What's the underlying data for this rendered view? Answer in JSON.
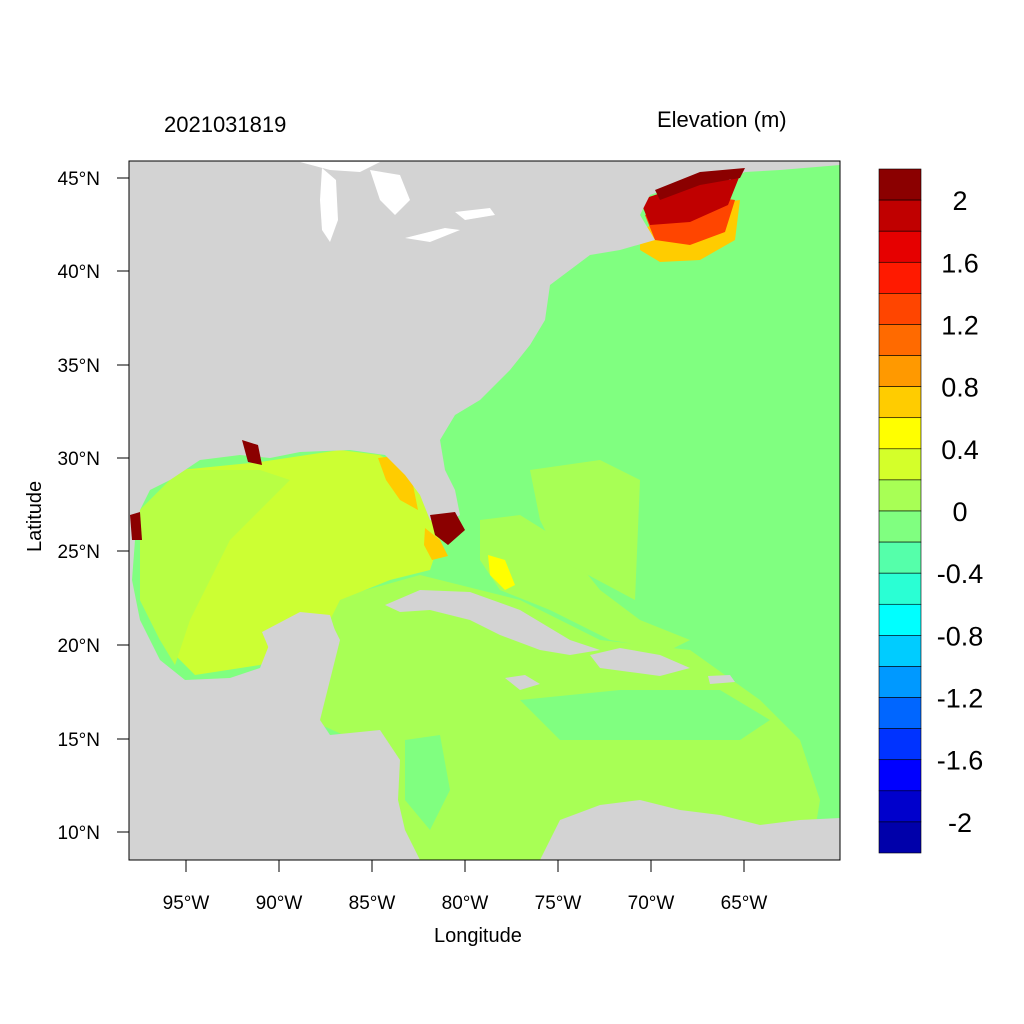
{
  "titles": {
    "left": "2021031819",
    "right": "Elevation (m)"
  },
  "axes": {
    "xlabel": "Longitude",
    "ylabel": "Latitude",
    "x_ticks": [
      "95°W",
      "90°W",
      "85°W",
      "80°W",
      "75°W",
      "70°W",
      "65°W"
    ],
    "y_ticks": [
      "45°N",
      "40°N",
      "35°N",
      "30°N",
      "25°N",
      "20°N",
      "15°N",
      "10°N"
    ]
  },
  "colorbar": {
    "labels": [
      "2",
      "1.6",
      "1.2",
      "0.8",
      "0.4",
      "0",
      "-0.4",
      "-0.8",
      "-1.2",
      "-1.6",
      "-2"
    ],
    "colors": [
      "#8b0000",
      "#c00000",
      "#e60000",
      "#ff1a00",
      "#ff4500",
      "#ff6a00",
      "#ff9900",
      "#ffcc00",
      "#ffff00",
      "#d4ff2a",
      "#a8ff55",
      "#80ff80",
      "#55ffaa",
      "#2affd4",
      "#00ffff",
      "#00ccff",
      "#0099ff",
      "#0066ff",
      "#0033ff",
      "#0000ff",
      "#0000cc",
      "#0000aa"
    ]
  },
  "colors": {
    "land": "#d3d3d3",
    "ocean_atlantic": "#80ff80",
    "gulf": "#ccff33",
    "caribbean": "#a8ff55",
    "surge_high": "#8b0000"
  }
}
